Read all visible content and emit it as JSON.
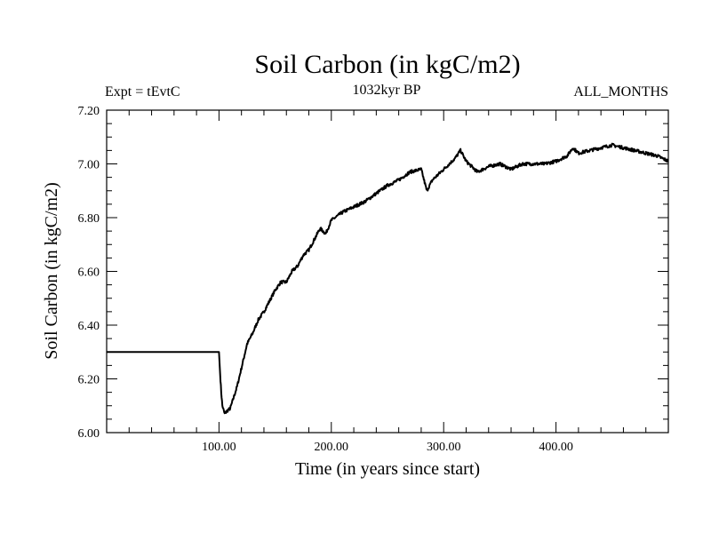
{
  "chart_data": {
    "type": "line",
    "title": "Soil Carbon (in kgC/m2)",
    "subtitle_left": "Expt = tEvtC",
    "subtitle_center": "1032kyr BP",
    "subtitle_right": "ALL_MONTHS",
    "xlabel": "Time (in years since start)",
    "ylabel": "Soil Carbon (in kgC/m2)",
    "xlim": [
      0,
      500
    ],
    "ylim": [
      6.0,
      7.2
    ],
    "x_ticks": [
      100,
      200,
      300,
      400
    ],
    "x_tick_labels": [
      "100.00",
      "200.00",
      "300.00",
      "400.00"
    ],
    "y_ticks": [
      6.0,
      6.2,
      6.4,
      6.6,
      6.8,
      7.0,
      7.2
    ],
    "y_tick_labels": [
      "6.00",
      "6.20",
      "6.40",
      "6.60",
      "6.80",
      "7.00",
      "7.20"
    ],
    "grid": false,
    "line_color": "#000000",
    "series": [
      {
        "name": "Soil Carbon",
        "x": [
          0,
          100,
          101,
          102,
          103,
          105,
          107,
          110,
          113,
          116,
          120,
          125,
          130,
          135,
          140,
          145,
          150,
          155,
          160,
          165,
          170,
          175,
          180,
          185,
          190,
          195,
          200,
          210,
          220,
          230,
          240,
          250,
          260,
          270,
          280,
          285,
          290,
          300,
          310,
          315,
          320,
          330,
          340,
          350,
          360,
          370,
          380,
          390,
          400,
          410,
          415,
          420,
          430,
          440,
          450,
          460,
          470,
          480,
          490,
          500
        ],
        "values": [
          6.3,
          6.3,
          6.22,
          6.15,
          6.1,
          6.07,
          6.08,
          6.09,
          6.13,
          6.17,
          6.24,
          6.33,
          6.37,
          6.42,
          6.45,
          6.49,
          6.53,
          6.56,
          6.56,
          6.6,
          6.62,
          6.66,
          6.68,
          6.72,
          6.76,
          6.74,
          6.79,
          6.82,
          6.84,
          6.86,
          6.89,
          6.92,
          6.94,
          6.97,
          6.98,
          6.9,
          6.94,
          6.98,
          7.02,
          7.05,
          7.01,
          6.97,
          6.99,
          7.0,
          6.98,
          7.0,
          7.0,
          7.0,
          7.01,
          7.03,
          7.06,
          7.04,
          7.05,
          7.06,
          7.07,
          7.06,
          7.05,
          7.04,
          7.03,
          7.01
        ]
      }
    ]
  }
}
